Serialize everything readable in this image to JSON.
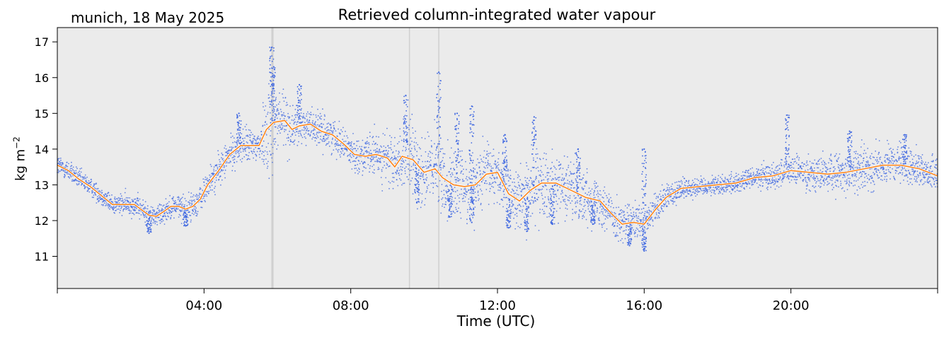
{
  "header": {
    "location_date": "munich, 18 May 2025",
    "title": "Retrieved column-integrated water vapour"
  },
  "chart_data": {
    "type": "scatter",
    "title": "Retrieved column-integrated water vapour",
    "subtitle": "munich, 18 May 2025",
    "xlabel": "Time (UTC)",
    "ylabel_base": "kg m",
    "ylabel_exp": "−2",
    "x_units": "hours UTC",
    "xlim": [
      0,
      24
    ],
    "ylim": [
      10.1,
      17.4
    ],
    "x_ticks": [
      {
        "value": 4,
        "label": "04:00"
      },
      {
        "value": 8,
        "label": "08:00"
      },
      {
        "value": 12,
        "label": "12:00"
      },
      {
        "value": 16,
        "label": "16:00"
      },
      {
        "value": 20,
        "label": "20:00"
      }
    ],
    "y_ticks": [
      11,
      12,
      13,
      14,
      15,
      16,
      17
    ],
    "grid": false,
    "legend": "none",
    "background_color": "#ebebeb",
    "gap_markers_hours": [
      5.85,
      5.88,
      9.6,
      10.4
    ],
    "series": [
      {
        "kind": "scatter",
        "color": "#4169e1",
        "noise": [
          [
            0.0,
            0.15
          ],
          [
            1.0,
            0.12
          ],
          [
            2.0,
            0.15
          ],
          [
            3.0,
            0.15
          ],
          [
            4.0,
            0.2
          ],
          [
            5.5,
            0.25
          ],
          [
            5.8,
            0.7
          ],
          [
            6.5,
            0.25
          ],
          [
            8.0,
            0.2
          ],
          [
            9.0,
            0.35
          ],
          [
            9.6,
            0.5
          ],
          [
            10.5,
            0.5
          ],
          [
            12.0,
            0.4
          ],
          [
            13.0,
            0.45
          ],
          [
            14.5,
            0.35
          ],
          [
            15.5,
            0.25
          ],
          [
            16.5,
            0.2
          ],
          [
            17.5,
            0.12
          ],
          [
            19.0,
            0.15
          ],
          [
            20.0,
            0.2
          ],
          [
            22.0,
            0.3
          ],
          [
            24.0,
            0.2
          ]
        ],
        "spikes": [
          [
            5.85,
            16.85
          ],
          [
            5.9,
            16.3
          ],
          [
            6.6,
            15.8
          ],
          [
            4.95,
            15.0
          ],
          [
            9.5,
            15.5
          ],
          [
            10.4,
            16.15
          ],
          [
            10.9,
            15.0
          ],
          [
            11.3,
            15.2
          ],
          [
            12.2,
            14.4
          ],
          [
            13.0,
            14.9
          ],
          [
            14.2,
            14.0
          ],
          [
            16.0,
            14.0
          ],
          [
            19.9,
            14.95
          ],
          [
            21.6,
            14.5
          ],
          [
            23.1,
            14.4
          ]
        ],
        "dips": [
          [
            2.5,
            11.65
          ],
          [
            3.5,
            11.85
          ],
          [
            9.8,
            12.5
          ],
          [
            10.7,
            12.1
          ],
          [
            11.3,
            11.95
          ],
          [
            12.3,
            11.8
          ],
          [
            12.8,
            11.7
          ],
          [
            13.5,
            11.9
          ],
          [
            15.6,
            11.3
          ],
          [
            16.0,
            11.15
          ],
          [
            14.6,
            11.9
          ]
        ]
      },
      {
        "kind": "line",
        "color": "#ff7f0e",
        "points": [
          [
            0.0,
            13.55
          ],
          [
            0.3,
            13.4
          ],
          [
            0.6,
            13.15
          ],
          [
            0.9,
            12.95
          ],
          [
            1.2,
            12.7
          ],
          [
            1.5,
            12.45
          ],
          [
            1.8,
            12.45
          ],
          [
            2.1,
            12.45
          ],
          [
            2.3,
            12.3
          ],
          [
            2.5,
            12.15
          ],
          [
            2.7,
            12.12
          ],
          [
            2.9,
            12.25
          ],
          [
            3.1,
            12.4
          ],
          [
            3.3,
            12.4
          ],
          [
            3.5,
            12.32
          ],
          [
            3.7,
            12.4
          ],
          [
            3.9,
            12.6
          ],
          [
            4.1,
            13.0
          ],
          [
            4.4,
            13.4
          ],
          [
            4.7,
            13.85
          ],
          [
            5.0,
            14.1
          ],
          [
            5.3,
            14.1
          ],
          [
            5.5,
            14.1
          ],
          [
            5.7,
            14.55
          ],
          [
            5.9,
            14.75
          ],
          [
            6.2,
            14.8
          ],
          [
            6.4,
            14.55
          ],
          [
            6.6,
            14.65
          ],
          [
            6.9,
            14.7
          ],
          [
            7.2,
            14.5
          ],
          [
            7.5,
            14.4
          ],
          [
            7.8,
            14.15
          ],
          [
            8.1,
            13.85
          ],
          [
            8.4,
            13.8
          ],
          [
            8.7,
            13.85
          ],
          [
            9.0,
            13.75
          ],
          [
            9.2,
            13.5
          ],
          [
            9.4,
            13.8
          ],
          [
            9.7,
            13.7
          ],
          [
            10.0,
            13.35
          ],
          [
            10.3,
            13.45
          ],
          [
            10.5,
            13.2
          ],
          [
            10.8,
            13.0
          ],
          [
            11.1,
            12.95
          ],
          [
            11.4,
            13.0
          ],
          [
            11.7,
            13.3
          ],
          [
            12.0,
            13.35
          ],
          [
            12.3,
            12.75
          ],
          [
            12.6,
            12.55
          ],
          [
            12.9,
            12.85
          ],
          [
            13.2,
            13.05
          ],
          [
            13.6,
            13.05
          ],
          [
            14.0,
            12.85
          ],
          [
            14.4,
            12.65
          ],
          [
            14.8,
            12.55
          ],
          [
            15.1,
            12.2
          ],
          [
            15.4,
            11.9
          ],
          [
            15.7,
            11.95
          ],
          [
            16.0,
            11.9
          ],
          [
            16.3,
            12.3
          ],
          [
            16.6,
            12.65
          ],
          [
            17.0,
            12.9
          ],
          [
            17.5,
            12.95
          ],
          [
            18.0,
            13.0
          ],
          [
            18.5,
            13.05
          ],
          [
            19.0,
            13.2
          ],
          [
            19.5,
            13.25
          ],
          [
            20.0,
            13.4
          ],
          [
            20.5,
            13.35
          ],
          [
            21.0,
            13.3
          ],
          [
            21.5,
            13.35
          ],
          [
            22.0,
            13.45
          ],
          [
            22.5,
            13.55
          ],
          [
            23.0,
            13.55
          ],
          [
            23.5,
            13.45
          ],
          [
            24.0,
            13.25
          ]
        ]
      }
    ]
  }
}
